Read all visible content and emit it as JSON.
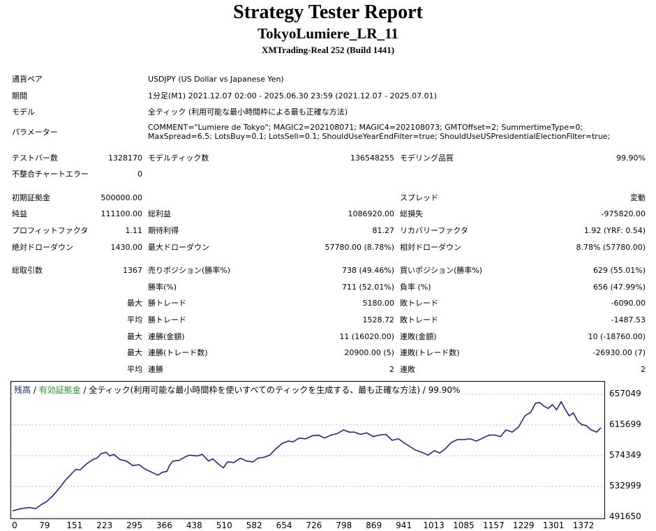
{
  "header": {
    "title": "Strategy Tester Report",
    "subtitle": "TokyoLumiere_LR_11",
    "build": "XMTrading-Real 252 (Build 1441)"
  },
  "settings": {
    "pair_label": "通貨ペア",
    "pair_value": "USDJPY (US Dollar vs Japanese Yen)",
    "period_label": "期間",
    "period_value": "1分足(M1) 2021.12.07 02:00 - 2025.06.30 23:59 (2021.12.07 - 2025.07.01)",
    "model_label": "モデル",
    "model_value": "全ティック (利用可能な最小時間枠による最も正確な方法)",
    "params_label": "パラメーター",
    "params_value": "COMMENT=\"Lumiere de Tokyo\"; MAGIC2=202108071; MAGIC4=202108073; GMTOffset=2; SummertimeType=0; MaxSpread=6.5; LotsBuy=0.1; LotsSell=0.1; ShouldUseYearEndFilter=true; ShouldUseUSPresidentialElectionFilter=true;"
  },
  "stats": {
    "bars_label": "テストバー数",
    "bars_value": "1328170",
    "ticks_label": "モデルティック数",
    "ticks_value": "136548255",
    "quality_label": "モデリング品質",
    "quality_value": "99.90%",
    "mismatch_label": "不整合チャートエラー",
    "mismatch_value": "0",
    "deposit_label": "初期証拠金",
    "deposit_value": "500000.00",
    "spread_label": "スプレッド",
    "spread_value": "変動",
    "net_label": "純益",
    "net_value": "111100.00",
    "gross_profit_label": "総利益",
    "gross_profit_value": "1086920.00",
    "gross_loss_label": "総損失",
    "gross_loss_value": "-975820.00",
    "pf_label": "プロフィットファクタ",
    "pf_value": "1.11",
    "expected_label": "期待利得",
    "expected_value": "81.27",
    "recovery_label": "リカバリーファクタ",
    "recovery_value": "1.92 (YRF: 0.54)",
    "abs_dd_label": "絶対ドローダウン",
    "abs_dd_value": "1430.00",
    "max_dd_label": "最大ドローダウン",
    "max_dd_value": "57780.00 (8.78%)",
    "rel_dd_label": "相対ドローダウン",
    "rel_dd_value": "8.78% (57780.00)",
    "trades_label": "総取引数",
    "trades_value": "1367",
    "short_label": "売りポジション(勝率%)",
    "short_value": "738 (49.46%)",
    "long_label": "買いポジション(勝率%)",
    "long_value": "629 (55.01%)",
    "winrate_label": "勝率(%)",
    "winrate_value": "711 (52.01%)",
    "lossrate_label": "負率 (%)",
    "lossrate_value": "656 (47.99%)",
    "max_word": "最大",
    "avg_word": "平均",
    "largest_win_label": "勝トレード",
    "largest_win_value": "5180.00",
    "largest_loss_label": "敗トレード",
    "largest_loss_value": "-6090.00",
    "avg_win_label": "勝トレード",
    "avg_win_value": "1528.72",
    "avg_loss_label": "敗トレード",
    "avg_loss_value": "-1487.53",
    "max_consec_win_label": "連勝(金額)",
    "max_consec_win_value": "11 (16020.00)",
    "max_consec_loss_label": "連敗(金額)",
    "max_consec_loss_value": "10 (-18760.00)",
    "max_consec_profit_label": "連勝(トレード数)",
    "max_consec_profit_value": "20900.00 (5)",
    "max_consec_lossamt_label": "連敗(トレード数)",
    "max_consec_lossamt_value": "-26930.00 (7)",
    "avg_consec_win_label": "連勝",
    "avg_consec_win_value": "2",
    "avg_consec_loss_label": "連敗",
    "avg_consec_loss_value": "2"
  },
  "chart_legend": {
    "balance": "残高",
    "sep1": " / ",
    "equity": "有効証拠金",
    "sep2": " / ",
    "model": "全ティック(利用可能な最小時間枠を使いすべてのティックを生成する、最も正確な方法)",
    "sep3": " / ",
    "quality": "99.90%"
  },
  "colors": {
    "balance": "#1a2596",
    "equity": "#1e9e1e",
    "legend_text": "#000000"
  },
  "chart_data": {
    "type": "line",
    "x_ticks": [
      "0",
      "79",
      "151",
      "223",
      "295",
      "366",
      "438",
      "510",
      "582",
      "654",
      "726",
      "798",
      "869",
      "941",
      "1013",
      "1085",
      "1157",
      "1229",
      "1301",
      "1372"
    ],
    "y_ticks": [
      "657049",
      "615699",
      "574349",
      "532999",
      "491650"
    ],
    "xlim": [
      0,
      1400
    ],
    "ylim": [
      491650,
      657049
    ],
    "series": [
      {
        "name": "残高",
        "x": [
          0,
          20,
          40,
          55,
          70,
          80,
          95,
          110,
          125,
          140,
          150,
          160,
          175,
          190,
          200,
          210,
          222,
          230,
          240,
          255,
          270,
          285,
          300,
          315,
          330,
          345,
          355,
          366,
          372,
          380,
          395,
          410,
          420,
          438,
          450,
          465,
          475,
          490,
          500,
          510,
          525,
          540,
          555,
          570,
          582,
          595,
          610,
          625,
          640,
          654,
          665,
          680,
          695,
          710,
          726,
          740,
          755,
          770,
          785,
          798,
          810,
          825,
          840,
          855,
          869,
          885,
          900,
          915,
          930,
          941,
          955,
          970,
          985,
          1000,
          1013,
          1025,
          1040,
          1055,
          1070,
          1085,
          1100,
          1115,
          1130,
          1145,
          1157,
          1170,
          1185,
          1200,
          1215,
          1229,
          1240,
          1250,
          1260,
          1270,
          1280,
          1290,
          1301,
          1310,
          1320,
          1330,
          1340,
          1350,
          1360,
          1372,
          1385,
          1395
        ],
        "y": [
          500000,
          503000,
          504500,
          503000,
          509000,
          512000,
          520000,
          530000,
          541000,
          550000,
          556000,
          555000,
          563000,
          569000,
          571000,
          577000,
          579000,
          574000,
          576000,
          569000,
          567000,
          561000,
          562000,
          556000,
          552000,
          548000,
          552000,
          553000,
          561000,
          567000,
          568000,
          573000,
          575000,
          574000,
          576000,
          567000,
          570000,
          562000,
          558000,
          566000,
          565000,
          571000,
          567000,
          566000,
          571000,
          572000,
          575000,
          584000,
          591000,
          594000,
          593000,
          598000,
          597000,
          601000,
          602000,
          598000,
          602000,
          604000,
          609000,
          606000,
          606000,
          603000,
          605000,
          600000,
          602000,
          603000,
          595000,
          597000,
          591000,
          587000,
          582000,
          579000,
          575000,
          581000,
          578000,
          583000,
          592000,
          596000,
          596000,
          597000,
          594000,
          598000,
          602000,
          602000,
          600000,
          609000,
          606000,
          613000,
          628000,
          633000,
          645000,
          646000,
          641000,
          638000,
          643000,
          636000,
          647000,
          637000,
          628000,
          632000,
          621000,
          616000,
          615000,
          609000,
          606000,
          612000
        ]
      }
    ]
  }
}
